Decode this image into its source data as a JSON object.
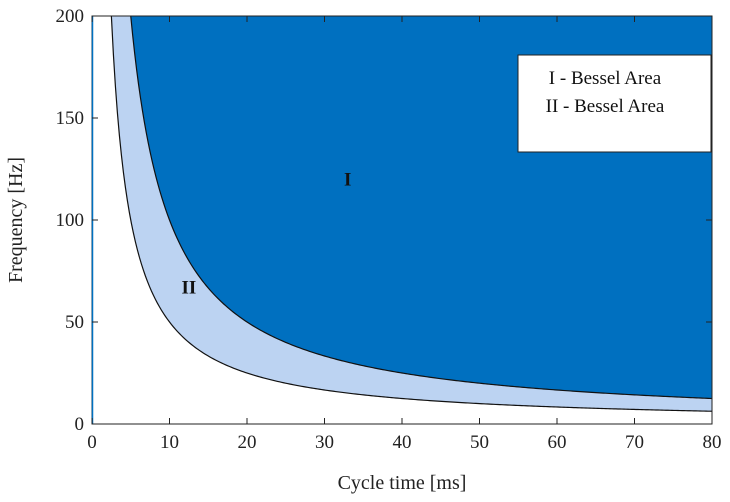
{
  "chart_data": {
    "type": "area",
    "title": "",
    "xlabel": "Cycle time [ms]",
    "ylabel": "Frequency [Hz]",
    "xlim": [
      0,
      80
    ],
    "ylim": [
      0,
      200
    ],
    "xticks": [
      0,
      10,
      20,
      30,
      40,
      50,
      60,
      70,
      80
    ],
    "yticks": [
      0,
      50,
      100,
      150,
      200
    ],
    "grid": false,
    "legend_position": "top-right",
    "legend": [
      "I - Bessel Area",
      "II - Bessel Area"
    ],
    "series": [
      {
        "name": "I - Bessel Area",
        "region_label": "I",
        "boundary": "f = 1000 / t",
        "boundary_constant": 1000,
        "color": "#0070C0"
      },
      {
        "name": "II - Bessel Area",
        "region_label": "II",
        "boundary": "f = 500 / t",
        "boundary_constant": 500,
        "color": "#BCD3F2"
      }
    ],
    "annotations": [
      {
        "text": "I",
        "x": 33,
        "y": 117
      },
      {
        "text": "II",
        "x": 12.5,
        "y": 64
      }
    ]
  }
}
